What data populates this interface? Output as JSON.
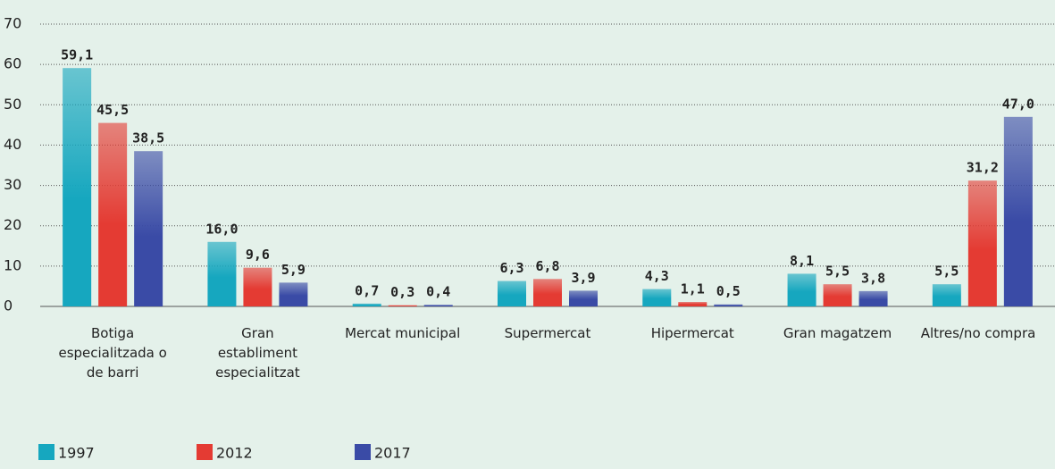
{
  "chart_data": {
    "type": "bar",
    "categories": [
      "Botiga especialitzada o de barri",
      "Gran establiment especialitzat",
      "Mercat municipal",
      "Supermercat",
      "Hipermercat",
      "Gran magatzem",
      "Altres/no compra"
    ],
    "series": [
      {
        "name": "1997",
        "color": "#16a7bf",
        "values": [
          59.1,
          16.0,
          0.7,
          6.3,
          4.3,
          8.1,
          5.5
        ],
        "value_labels": [
          "59,1",
          "16,0",
          "0,7",
          "6,3",
          "4,3",
          "8,1",
          "5,5"
        ]
      },
      {
        "name": "2012",
        "color": "#e43b33",
        "values": [
          45.5,
          9.6,
          0.3,
          6.8,
          1.1,
          5.5,
          31.2
        ],
        "value_labels": [
          "45,5",
          "9,6",
          "0,3",
          "6,8",
          "1,1",
          "5,5",
          "31,2"
        ]
      },
      {
        "name": "2017",
        "color": "#3a4ba6",
        "values": [
          38.5,
          5.9,
          0.4,
          3.9,
          0.5,
          3.8,
          47.0
        ],
        "value_labels": [
          "38,5",
          "5,9",
          "0,4",
          "3,9",
          "0,5",
          "3,8",
          "47,0"
        ]
      }
    ],
    "ylim": [
      0,
      70
    ],
    "yticks": [
      0,
      10,
      20,
      30,
      40,
      50,
      60,
      70
    ],
    "grid": true,
    "legend": "bottom-left"
  }
}
